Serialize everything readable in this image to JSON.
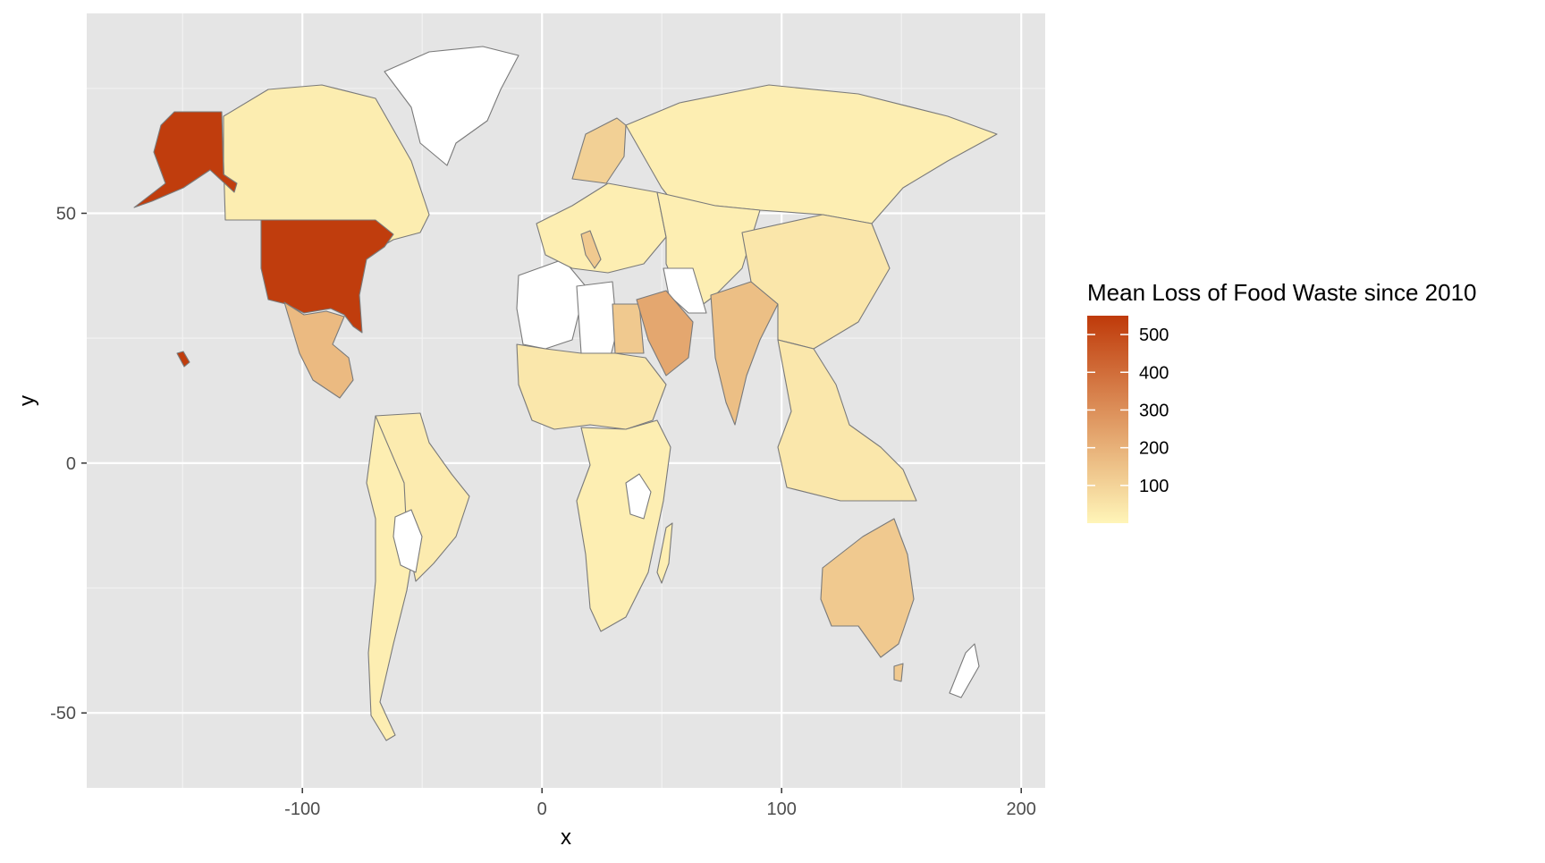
{
  "chart_data": {
    "type": "heatmap",
    "subtype": "choropleth-map",
    "xlabel": "x",
    "ylabel": "y",
    "xlim": [
      -190,
      210
    ],
    "ylim": [
      -65,
      90
    ],
    "x_ticks": [
      -100,
      0,
      100,
      200
    ],
    "x_tick_labels": [
      "-100",
      "0",
      "100",
      "200"
    ],
    "y_ticks": [
      -50,
      0,
      50
    ],
    "y_tick_labels": [
      "-50",
      "0",
      "50"
    ],
    "grid": true,
    "legend": {
      "title": "Mean Loss of Food Waste since 2010",
      "position": "right",
      "scale_min": 0,
      "scale_max": 550,
      "breaks": [
        100,
        200,
        300,
        400,
        500
      ],
      "break_labels": [
        "100",
        "200",
        "300",
        "400",
        "500"
      ],
      "low_color": "#FFF5B8",
      "high_color": "#BF3A0A",
      "missing_color": "#FFFFFF"
    },
    "regions": [
      {
        "id": "usa",
        "value": 540
      },
      {
        "id": "canada",
        "value": 25
      },
      {
        "id": "mexico",
        "value": 175
      },
      {
        "id": "brazil",
        "value": 30
      },
      {
        "id": "andes",
        "value": 20
      },
      {
        "id": "west-africa",
        "value": 40
      },
      {
        "id": "central-south-africa",
        "value": 20
      },
      {
        "id": "russia",
        "value": 20
      },
      {
        "id": "china",
        "value": 45
      },
      {
        "id": "india",
        "value": 160
      },
      {
        "id": "saudi-arabia",
        "value": 230
      },
      {
        "id": "egypt",
        "value": 130
      },
      {
        "id": "scandinavia",
        "value": 110
      },
      {
        "id": "australia",
        "value": 130
      },
      {
        "id": "southeast-asia",
        "value": 40
      },
      {
        "id": "greenland",
        "value": null
      },
      {
        "id": "north-africa-west",
        "value": null
      },
      {
        "id": "libya",
        "value": null
      }
    ]
  }
}
